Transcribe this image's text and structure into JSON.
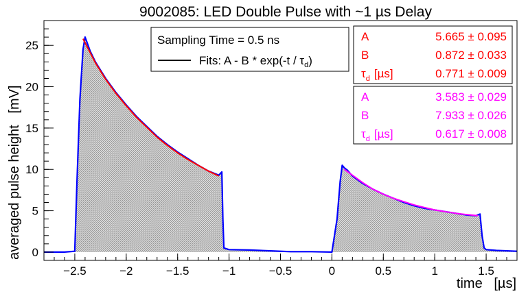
{
  "chart_data": {
    "type": "area",
    "title": "9002085:   LED Double Pulse with ~1 µs Delay",
    "xlabel": "time   [µs]",
    "ylabel": "averaged pulse height   [mV]",
    "xlim": [
      -2.8,
      1.8
    ],
    "ylim": [
      -1,
      28
    ],
    "x_ticks": [
      -2.5,
      -2,
      -1.5,
      -1,
      -0.5,
      0,
      0.5,
      1,
      1.5
    ],
    "x_tick_labels": [
      "−2.5",
      "−2",
      "−1.5",
      "−1",
      "−0.5",
      "0",
      "0.5",
      "1",
      "1.5"
    ],
    "y_ticks": [
      0,
      5,
      10,
      15,
      20,
      25
    ],
    "y_tick_labels": [
      "0",
      "5",
      "10",
      "15",
      "20",
      "25"
    ],
    "grid": false,
    "legend": {
      "placement": "top-center",
      "header": "Sampling Time = 0.5 ns",
      "entry": "Fits:  A - B * exp(-t / τ",
      "entry_sub": "d",
      "entry_close": ")"
    },
    "fit_boxes": [
      {
        "color": "#ff0000",
        "rows": [
          {
            "name": "A",
            "sub": "",
            "unit": "",
            "value": "5.665",
            "error": "0.095"
          },
          {
            "name": "B",
            "sub": "",
            "unit": "",
            "value": "0.872",
            "error": "0.033"
          },
          {
            "name": "τ",
            "sub": "d",
            "unit": "[µs]",
            "value": "0.771",
            "error": "0.009"
          }
        ]
      },
      {
        "color": "#ff00ff",
        "rows": [
          {
            "name": "A",
            "sub": "",
            "unit": "",
            "value": "3.583",
            "error": "0.029"
          },
          {
            "name": "B",
            "sub": "",
            "unit": "",
            "value": "7.933",
            "error": "0.026"
          },
          {
            "name": "τ",
            "sub": "d",
            "unit": "[µs]",
            "value": "0.617",
            "error": "0.008"
          }
        ]
      }
    ],
    "series": [
      {
        "color": "#0000ff",
        "fill_color": "#b9b9b9",
        "x": [
          -2.8,
          -2.6,
          -2.5,
          -2.48,
          -2.45,
          -2.42,
          -2.4,
          -2.35,
          -2.3,
          -2.2,
          -2.1,
          -2.0,
          -1.9,
          -1.8,
          -1.7,
          -1.6,
          -1.5,
          -1.4,
          -1.3,
          -1.2,
          -1.1,
          -1.07,
          -1.06,
          -1.05,
          -1.0,
          -0.8,
          -0.6,
          -0.4,
          -0.2,
          0.0,
          0.05,
          0.08,
          0.1,
          0.12,
          0.15,
          0.2,
          0.3,
          0.4,
          0.5,
          0.6,
          0.7,
          0.8,
          0.9,
          1.0,
          1.1,
          1.2,
          1.3,
          1.4,
          1.44,
          1.46,
          1.48,
          1.5,
          1.6,
          1.8
        ],
        "y": [
          0.0,
          0.0,
          0.1,
          8.0,
          18.5,
          24.5,
          26.0,
          24.3,
          23.0,
          21.0,
          19.3,
          17.8,
          16.4,
          15.2,
          14.0,
          13.0,
          12.1,
          11.3,
          10.5,
          9.8,
          9.3,
          9.7,
          4.0,
          0.5,
          0.3,
          0.25,
          0.15,
          0.05,
          0.05,
          0.0,
          4.0,
          8.5,
          10.5,
          10.2,
          9.9,
          9.2,
          8.3,
          7.6,
          7.0,
          6.5,
          6.0,
          5.6,
          5.3,
          5.1,
          4.9,
          4.7,
          4.5,
          4.4,
          4.6,
          2.0,
          0.5,
          0.3,
          0.2,
          0.1
        ]
      },
      {
        "color": "#ff0000",
        "x": [
          -2.42,
          -2.3,
          -2.2,
          -2.1,
          -2.0,
          -1.9,
          -1.8,
          -1.7,
          -1.6,
          -1.5,
          -1.4,
          -1.3,
          -1.2,
          -1.1
        ],
        "y": [
          25.8,
          22.9,
          20.9,
          19.2,
          17.7,
          16.3,
          15.1,
          13.9,
          12.9,
          12.0,
          11.2,
          10.5,
          9.8,
          9.2
        ]
      },
      {
        "color": "#ff00ff",
        "x": [
          0.12,
          0.2,
          0.3,
          0.4,
          0.5,
          0.6,
          0.7,
          0.8,
          0.9,
          1.0,
          1.1,
          1.2,
          1.3,
          1.42
        ],
        "y": [
          10.0,
          9.3,
          8.4,
          7.6,
          7.0,
          6.5,
          6.1,
          5.7,
          5.4,
          5.1,
          4.9,
          4.7,
          4.55,
          4.4
        ]
      }
    ]
  }
}
